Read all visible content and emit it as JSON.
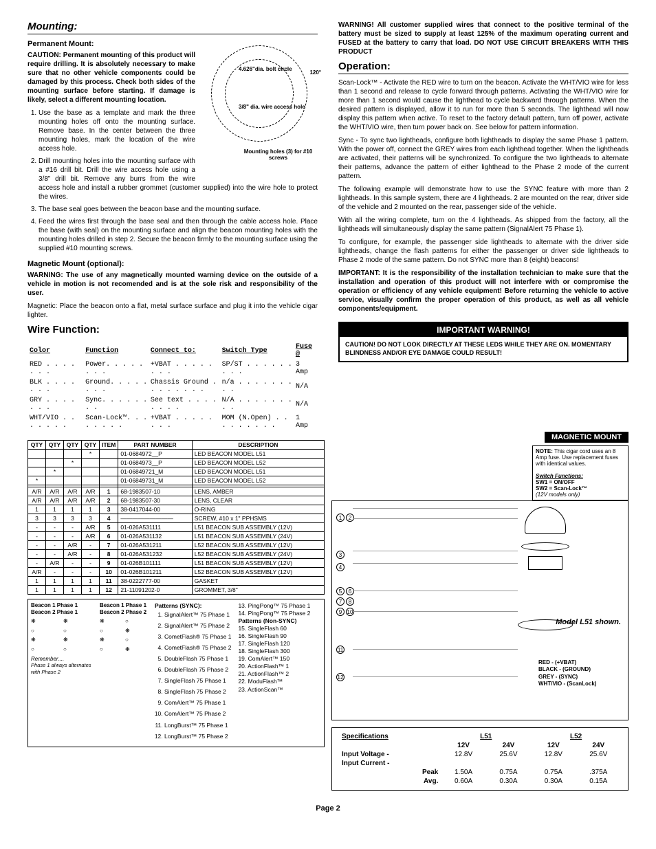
{
  "page_number": "Page 2",
  "left": {
    "mounting_heading": "Mounting:",
    "perm_mount_heading": "Permanent Mount:",
    "perm_mount_caution": "CAUTION: Permanent mounting of this product will require drilling. It is absolutely necessary to make sure that no other vehicle components could be damaged by this process. Check both sides of the mounting surface before starting. If damage is likely, select a different mounting location.",
    "steps": [
      "Use the base as a template and mark the three mounting holes off onto the mounting surface. Remove base. In the center between the three mounting holes, mark the location of the wire access hole.",
      "Drill mounting holes into the mounting surface with a #16 drill bit. Drill the wire access hole using a 3/8\" drill bit. Remove any burrs from the wire access hole and install a rubber grommet (customer supplied) into the wire hole to protect the wires.",
      "The base seal goes between the beacon base and the mounting surface.",
      "Feed the wires first through the base seal and then through the cable access hole. Place the base (with seal) on the mounting surface and align the beacon mounting holes with the mounting holes drilled in step 2. Secure the beacon firmly to the mounting surface using the supplied #10 mounting screws."
    ],
    "mag_mount_heading": "Magnetic Mount (optional):",
    "mag_warning": "WARNING: The use of any magnetically mounted warning device on the outside of a vehicle in motion is not recomended and is at the sole risk and responsibility of the user.",
    "mag_text": "Magnetic: Place the beacon onto a flat, metal surface surface and plug it into the vehicle cigar lighter.",
    "wire_heading": "Wire Function:",
    "wire_cols": [
      "Color",
      "Function",
      "Connect to:",
      "Switch Type",
      "Fuse @"
    ],
    "wire_rows": [
      [
        "RED",
        "Power",
        "+VBAT",
        "SP/ST",
        "3 Amp"
      ],
      [
        "BLK",
        "Ground",
        "Chassis Ground",
        "n/a",
        "N/A"
      ],
      [
        "GRY",
        "Sync",
        "See text",
        "N/A",
        "N/A"
      ],
      [
        "WHT/VIO",
        "Scan-Lock™",
        "+VBAT",
        "MOM (N.Open)",
        "1 Amp"
      ]
    ],
    "circle_labels": {
      "bolt_circle": "4.626\"dia. bolt circle",
      "angle": "120°",
      "wire_hole": "3/8\" dia. wire access hole",
      "mounting_holes": "Mounting holes (3) for #10 screws"
    }
  },
  "right": {
    "warning_top": "WARNING!   All customer supplied wires that connect to the positive terminal of the battery must be sized to supply at least 125% of the maximum operating current and FUSED at the battery to carry that load. DO NOT USE CIRCUIT BREAKERS WITH THIS PRODUCT",
    "operation_heading": "Operation:",
    "scanlock_para": "Scan-Lock™ - Activate the RED wire to turn on the beacon. Activate the WHT/VIO wire for less than 1 second and release to cycle forward through patterns. Activating the WHT/VIO wire for more than 1 second would cause the lighthead to cycle backward through patterns. When the desired pattern is displayed, allow it to run for more than 5 seconds. The lighthead will now display this pattern when active. To reset to the factory default pattern, turn off power, activate the WHT/VIO wire, then turn power back on. See below for pattern information.",
    "sync_para": "Sync - To sync two lightheads, configure both lightheads to display the same Phase 1 pattern. With the power off, connect the GREY wires from each lighthead together. When the lightheads are activated, their patterns will be synchronized. To configure the two lightheads to alternate their patterns, advance the pattern of either lighthead to the Phase 2 mode of the current pattern.",
    "example_para": "The following example will demonstrate how to use the SYNC feature with more than 2 lightheads. In this sample system, there are 4 lightheads. 2 are mounted on the rear, driver side of the vehicle and 2 mounted on the rear, passenger side of the vehicle.",
    "wiring_para": "With all the wiring complete, turn on the 4 lightheads. As shipped from the factory, all the lightheads will simultaneously display the same pattern (SignalAlert 75 Phase 1).",
    "configure_para": "To configure, for example, the passenger side lightheads to alternate with the driver side lightheads, change the flash patterns for either the passenger or driver side lightheads to Phase 2 mode of the same pattern. Do not SYNC more than 8 (eight) beacons!",
    "important_para": "IMPORTANT: It is the responsibility of the installation technician to make sure that the installation and operation of this product will not interfere with or compromise the operation or efficiency of any vehicle equipment!  Before returning the vehicle to active service, visually confirm the proper operation of this product, as well as all vehicle components/equipment.",
    "warning_box_header": "IMPORTANT WARNING!",
    "warning_box_body": "CAUTION! DO NOT LOOK DIRECTLY AT THESE LEDS WHILE THEY ARE ON. MOMENTARY BLINDNESS AND/OR EYE DAMAGE COULD RESULT!"
  },
  "parts": {
    "headers": [
      "QTY",
      "QTY",
      "QTY",
      "QTY",
      "ITEM",
      "PART NUMBER",
      "DESCRIPTION"
    ],
    "rows": [
      [
        "",
        "",
        "",
        "*",
        "",
        "01-0684972__P",
        "LED BEACON MODEL L51"
      ],
      [
        "",
        "",
        "*",
        "",
        "",
        "01-0684973__P",
        "LED BEACON MODEL L52"
      ],
      [
        "",
        "*",
        "",
        "",
        "",
        "01-06849721_M",
        "LED BEACON MODEL L51"
      ],
      [
        "*",
        "",
        "",
        "",
        "",
        "01-06849731_M",
        "LED BEACON MODEL L52"
      ],
      [
        "",
        "",
        "",
        "",
        "",
        "",
        ""
      ],
      [
        "A/R",
        "A/R",
        "A/R",
        "A/R",
        "1",
        "68-1983507-10",
        "LENS, AMBER"
      ],
      [
        "A/R",
        "A/R",
        "A/R",
        "A/R",
        "2",
        "68-1983507-30",
        "LENS, CLEAR"
      ],
      [
        "1",
        "1",
        "1",
        "1",
        "3",
        "38-0417044-00",
        "O-RING"
      ],
      [
        "3",
        "3",
        "3",
        "3",
        "4",
        "—————————",
        "SCREW, #10 x 1\" PPHSMS"
      ],
      [
        "-",
        "-",
        "-",
        "A/R",
        "5",
        "01-026A531111",
        "L51 BEACON SUB ASSEMBLY (12V)"
      ],
      [
        "-",
        "-",
        "-",
        "A/R",
        "6",
        "01-026A531132",
        "L51 BEACON SUB ASSEMBLY (24V)"
      ],
      [
        "-",
        "-",
        "A/R",
        "-",
        "7",
        "01-026A531211",
        "L52 BEACON SUB ASSEMBLY (12V)"
      ],
      [
        "-",
        "-",
        "A/R",
        "-",
        "8",
        "01-026A531232",
        "L52 BEACON SUB ASSEMBLY (24V)"
      ],
      [
        "-",
        "A/R",
        "-",
        "-",
        "9",
        "01-026B101111",
        "L51 BEACON SUB ASSEMBLY (12V)"
      ],
      [
        "A/R",
        "-",
        "-",
        "-",
        "10",
        "01-026B101211",
        "L52 BEACON SUB ASSEMBLY (12V)"
      ],
      [
        "1",
        "1",
        "1",
        "1",
        "11",
        "38-0222777-00",
        "GASKET"
      ],
      [
        "1",
        "1",
        "1",
        "1",
        "12",
        "21-11091202-0",
        "GROMMET, 3/8\""
      ]
    ]
  },
  "patterns": {
    "phase_header_1": "Beacon 1 Phase 1",
    "phase_header_2": "Beacon 2 Phase 1",
    "phase_header_3": "Beacon 1 Phase 1",
    "phase_header_4": "Beacon 2 Phase 2",
    "remember": "Remember....",
    "remember_note": "Phase 1 always alternates with Phase 2",
    "sync_title": "Patterns (SYNC):",
    "sync_list": [
      "SignalAlert™ 75 Phase 1",
      "SignalAlert™ 75 Phase 2",
      "CometFlash® 75 Phase 1",
      "CometFlash® 75 Phase 2",
      "DoubleFlash 75 Phase 1",
      "DoubleFlash 75 Phase 2",
      "SingleFlash 75 Phase 1",
      "SingleFlash 75 Phase 2",
      "ComAlert™ 75 Phase 1",
      "ComAlert™ 75 Phase 2",
      "LongBurst™ 75 Phase 1",
      "LongBurst™ 75 Phase 2"
    ],
    "nonsync_start": 13,
    "nonsync_title": "Patterns (Non-SYNC)",
    "nonsync_list_first2": [
      "PingPong™ 75 Phase 1",
      "PingPong™ 75 Phase 2"
    ],
    "nonsync_list": [
      "SingleFlash 60",
      "SingleFlash 90",
      "SingleFlash 120",
      "SingleFlash 300",
      "ComAlert™ 150",
      "ActionFlash™ 1",
      "ActionFlash™ 2",
      "ModuFlash™",
      "ActionScan™"
    ]
  },
  "diagram": {
    "magnetic_label": "MAGNETIC MOUNT",
    "note_title": "NOTE:",
    "note_body": "This cigar cord uses an 8 Amp fuse. Use replacement fuses with identical values.",
    "switch_title": "Switch Functions:",
    "sw1": "SW1 = ON/OFF",
    "sw2": "SW2 = Scan-Lock™",
    "sw_note": "(12V models only)",
    "model_label": "Model L51 shown.",
    "wire_labels": [
      "RED - (+VBAT)",
      "BLACK - (GROUND)",
      "GREY - (SYNC)",
      "WHT/VIO - (ScanLock)"
    ]
  },
  "specs": {
    "title": "Specifications",
    "models": [
      "L51",
      "L52"
    ],
    "volt_labels": [
      "12V",
      "24V",
      "12V",
      "24V"
    ],
    "rows": [
      {
        "label": "Input Voltage   -",
        "vals": [
          "12.8V",
          "25.6V",
          "12.8V",
          "25.6V"
        ]
      },
      {
        "label": "Input Current   -",
        "vals": [
          "",
          "",
          "",
          ""
        ]
      },
      {
        "label": "Peak",
        "vals": [
          "1.50A",
          "0.75A",
          "0.75A",
          ".375A"
        ]
      },
      {
        "label": "Avg.",
        "vals": [
          "0.60A",
          "0.30A",
          "0.30A",
          "0.15A"
        ]
      }
    ]
  }
}
